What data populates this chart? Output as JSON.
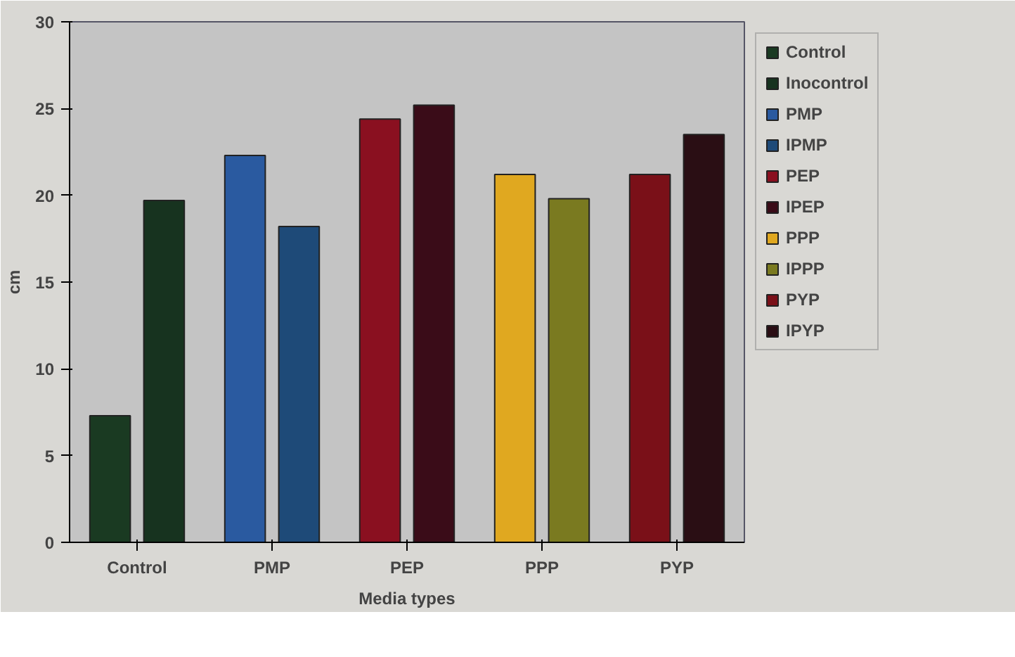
{
  "chart_data": {
    "type": "bar",
    "xlabel": "Media types",
    "ylabel": "cm",
    "categories": [
      "Control",
      "PMP",
      "PEP",
      "PPP",
      "PYP"
    ],
    "series": [
      {
        "name": "Control",
        "color": "#1a3a22",
        "values": [
          7.3,
          null,
          null,
          null,
          null
        ]
      },
      {
        "name": "Inocontrol",
        "color": "#17331f",
        "values": [
          19.7,
          null,
          null,
          null,
          null
        ]
      },
      {
        "name": "PMP",
        "color": "#2a5aa0",
        "values": [
          null,
          22.3,
          null,
          null,
          null
        ]
      },
      {
        "name": "IPMP",
        "color": "#1e4a78",
        "values": [
          null,
          18.2,
          null,
          null,
          null
        ]
      },
      {
        "name": "PEP",
        "color": "#8a1020",
        "values": [
          null,
          null,
          24.4,
          null,
          null
        ]
      },
      {
        "name": "IPEP",
        "color": "#3a0c18",
        "values": [
          null,
          null,
          25.2,
          null,
          null
        ]
      },
      {
        "name": "PPP",
        "color": "#e0a820",
        "values": [
          null,
          null,
          null,
          21.2,
          null
        ]
      },
      {
        "name": "IPPP",
        "color": "#7a7a20",
        "values": [
          null,
          null,
          null,
          19.8,
          null
        ]
      },
      {
        "name": "PYP",
        "color": "#7a1018",
        "values": [
          null,
          null,
          null,
          null,
          21.2
        ]
      },
      {
        "name": "IPYP",
        "color": "#2a0e14",
        "values": [
          null,
          null,
          null,
          null,
          23.5
        ]
      }
    ],
    "ylim": [
      0,
      30
    ],
    "yticks": [
      0,
      5,
      10,
      15,
      20,
      25,
      30
    ],
    "grid": false,
    "legend": "right"
  }
}
